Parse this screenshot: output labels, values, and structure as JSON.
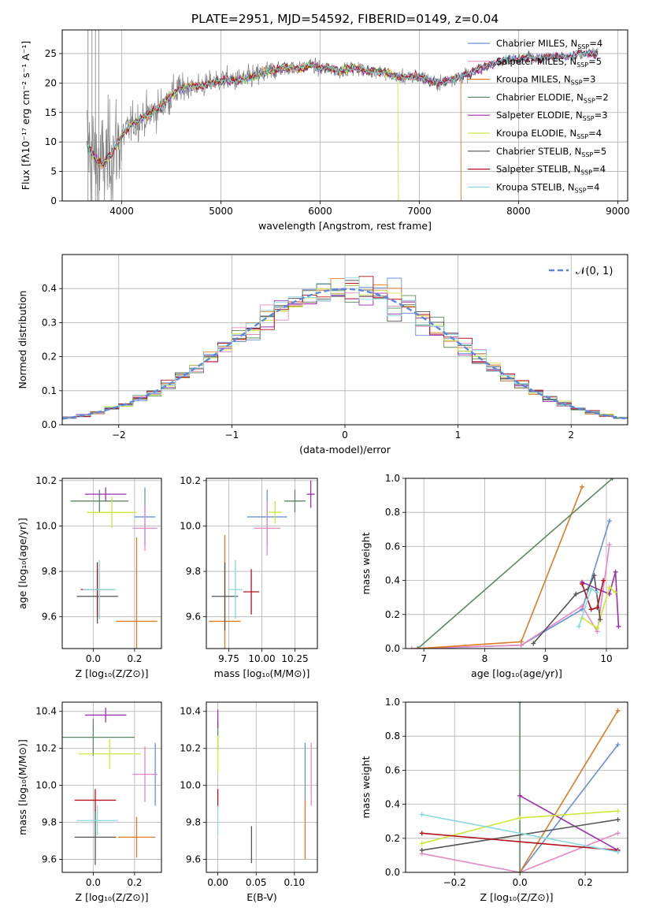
{
  "title": "PLATE=2951, MJD=54592, FIBERID=0149, z=0.04",
  "models": [
    {
      "label": "Chabrier MILES, N",
      "n": "4",
      "color": "#6a8fd8"
    },
    {
      "label": "Salpeter MILES, N",
      "n": "5",
      "color": "#e48ac2"
    },
    {
      "label": "Kroupa MILES, N",
      "n": "3",
      "color": "#e07b22"
    },
    {
      "label": "Chabrier ELODIE, N",
      "n": "2",
      "color": "#5b8a62"
    },
    {
      "label": "Salpeter ELODIE, N",
      "n": "3",
      "color": "#9b2fae"
    },
    {
      "label": "Kroupa ELODIE, N",
      "n": "4",
      "color": "#cde83b"
    },
    {
      "label": "Chabrier STELIB, N",
      "n": "5",
      "color": "#555555"
    },
    {
      "label": "Salpeter STELIB, N",
      "n": "4",
      "color": "#b5121b"
    },
    {
      "label": "Kroupa STELIB, N",
      "n": "4",
      "color": "#85dadd"
    }
  ],
  "legend_sub": "SSP",
  "chart_data": [
    {
      "id": "spectrum",
      "type": "line",
      "xlabel": "wavelength [Angstrom, rest frame]",
      "ylabel": "Flux [fλ10⁻¹⁷ erg cm⁻² s⁻¹ A⁻¹]",
      "xlim": [
        3400,
        9100
      ],
      "ylim": [
        0,
        29
      ],
      "xticks": [
        4000,
        5000,
        6000,
        7000,
        8000,
        9000
      ],
      "yticks": [
        0,
        5,
        10,
        15,
        20,
        25
      ],
      "data_color": "#808080",
      "continuum": [
        [
          3650,
          9.5
        ],
        [
          3700,
          8.0
        ],
        [
          3800,
          6.0
        ],
        [
          3900,
          8.0
        ],
        [
          4000,
          11.0
        ],
        [
          4100,
          13.0
        ],
        [
          4200,
          14.0
        ],
        [
          4300,
          15.0
        ],
        [
          4400,
          16.0
        ],
        [
          4500,
          18.0
        ],
        [
          4600,
          19.0
        ],
        [
          4700,
          19.5
        ],
        [
          4800,
          19.5
        ],
        [
          4900,
          20.0
        ],
        [
          5000,
          20.5
        ],
        [
          5100,
          20.5
        ],
        [
          5200,
          20.5
        ],
        [
          5300,
          21.0
        ],
        [
          5400,
          21.5
        ],
        [
          5500,
          22.0
        ],
        [
          5600,
          22.5
        ],
        [
          5700,
          22.5
        ],
        [
          5800,
          22.5
        ],
        [
          5900,
          23.0
        ],
        [
          6000,
          22.5
        ],
        [
          6100,
          22.5
        ],
        [
          6200,
          22.0
        ],
        [
          6300,
          22.5
        ],
        [
          6400,
          22.5
        ],
        [
          6500,
          22.0
        ],
        [
          6600,
          22.0
        ],
        [
          6700,
          21.5
        ],
        [
          6800,
          21.0
        ],
        [
          6900,
          21.0
        ],
        [
          7000,
          21.0
        ],
        [
          7100,
          20.5
        ],
        [
          7200,
          20.0
        ],
        [
          7300,
          20.5
        ],
        [
          7400,
          21.0
        ],
        [
          7500,
          21.5
        ],
        [
          7600,
          22.5
        ],
        [
          7700,
          23.0
        ],
        [
          7800,
          23.5
        ],
        [
          7900,
          24.0
        ],
        [
          8000,
          24.0
        ],
        [
          8100,
          24.5
        ],
        [
          8200,
          24.0
        ],
        [
          8300,
          24.5
        ],
        [
          8400,
          24.5
        ],
        [
          8500,
          24.5
        ],
        [
          8600,
          25.0
        ],
        [
          8700,
          25.0
        ],
        [
          8800,
          25.0
        ]
      ],
      "dropouts": [
        {
          "model": 5,
          "x": 6790
        },
        {
          "model": 2,
          "x": 7420
        }
      ]
    },
    {
      "id": "residuals",
      "type": "histogram",
      "xlabel": "(data-model)/error",
      "ylabel": "Normed distribution",
      "xlim": [
        -2.5,
        2.5
      ],
      "ylim": [
        0,
        0.5
      ],
      "xticks": [
        -2,
        -1,
        0,
        1,
        2
      ],
      "yticks": [
        0.0,
        0.1,
        0.2,
        0.3,
        0.4
      ],
      "bin_width": 0.125,
      "legend": "𝒩(0, 1)",
      "normal_color": "#5b87dd",
      "grid": true
    },
    {
      "id": "age-vs-Z",
      "type": "scatter",
      "xlabel": "Z [log₁₀(Z/Z⊙)]",
      "ylabel": "age  [log₁₀(age/yr)]",
      "xlim": [
        -0.15,
        0.33
      ],
      "ylim": [
        9.46,
        10.21
      ],
      "xticks": [
        0.0,
        0.2
      ],
      "yticks": [
        9.6,
        9.8,
        10.0,
        10.2
      ],
      "points": [
        {
          "model": 0,
          "x": 0.25,
          "y": 10.04,
          "xerr": 0.05,
          "yerr": 0.13
        },
        {
          "model": 1,
          "x": 0.25,
          "y": 9.99,
          "xerr": 0.06,
          "yerr": 0.1
        },
        {
          "model": 2,
          "x": 0.21,
          "y": 9.58,
          "xerr": 0.1,
          "yerr": 0.37
        },
        {
          "model": 3,
          "x": 0.03,
          "y": 10.11,
          "xerr": 0.14,
          "yerr": 0.05
        },
        {
          "model": 4,
          "x": 0.06,
          "y": 10.14,
          "xerr": 0.1,
          "yerr": 0.03
        },
        {
          "model": 5,
          "x": 0.09,
          "y": 10.06,
          "xerr": 0.12,
          "yerr": 0.07
        },
        {
          "model": 6,
          "x": 0.02,
          "y": 9.69,
          "xerr": 0.1,
          "yerr": 0.12
        },
        {
          "model": 7,
          "x": 0.02,
          "y": 9.72,
          "xerr": 0.08,
          "yerr": 0.12
        },
        {
          "model": 8,
          "x": 0.03,
          "y": 9.72,
          "xerr": 0.08,
          "yerr": 0.13
        }
      ]
    },
    {
      "id": "age-vs-mass",
      "type": "scatter",
      "xlabel": "mass [log₁₀(M/M⊙)]",
      "ylabel": "",
      "xlim": [
        9.58,
        10.42
      ],
      "ylim": [
        9.46,
        10.21
      ],
      "xticks": [
        9.75,
        10.0,
        10.25
      ],
      "yticks": [
        9.6,
        9.8,
        10.0,
        10.2
      ],
      "points": [
        {
          "model": 0,
          "x": 10.04,
          "y": 10.04,
          "xerr": 0.15,
          "yerr": 0.12
        },
        {
          "model": 1,
          "x": 10.04,
          "y": 9.99,
          "xerr": 0.1,
          "yerr": 0.12
        },
        {
          "model": 2,
          "x": 9.72,
          "y": 9.58,
          "xerr": 0.12,
          "yerr": 0.38
        },
        {
          "model": 3,
          "x": 10.25,
          "y": 10.11,
          "xerr": 0.08,
          "yerr": 0.05
        },
        {
          "model": 4,
          "x": 10.37,
          "y": 10.14,
          "xerr": 0.03,
          "yerr": 0.06
        },
        {
          "model": 5,
          "x": 10.1,
          "y": 10.06,
          "xerr": 0.05,
          "yerr": 0.05
        },
        {
          "model": 6,
          "x": 9.72,
          "y": 9.69,
          "xerr": 0.1,
          "yerr": 0.15
        },
        {
          "model": 7,
          "x": 9.92,
          "y": 9.71,
          "xerr": 0.06,
          "yerr": 0.1
        },
        {
          "model": 8,
          "x": 9.8,
          "y": 9.72,
          "xerr": 0.05,
          "yerr": 0.13
        }
      ]
    },
    {
      "id": "weight-vs-age",
      "type": "line",
      "xlabel": "age  [log₁₀(age/yr)]",
      "ylabel": "mass weight",
      "xlim": [
        6.7,
        10.35
      ],
      "ylim": [
        0,
        1.0
      ],
      "xticks": [
        7,
        8,
        9,
        10
      ],
      "yticks": [
        0.0,
        0.2,
        0.4,
        0.6,
        0.8,
        1.0
      ],
      "grid": true,
      "series": [
        {
          "model": 0,
          "points": [
            [
              6.9,
              0.0
            ],
            [
              8.6,
              0.02
            ],
            [
              9.6,
              0.23
            ],
            [
              10.05,
              0.75
            ]
          ]
        },
        {
          "model": 1,
          "points": [
            [
              6.8,
              0.0
            ],
            [
              8.6,
              0.02
            ],
            [
              9.6,
              0.25
            ],
            [
              9.85,
              0.1
            ],
            [
              10.05,
              0.61
            ]
          ]
        },
        {
          "model": 2,
          "points": [
            [
              6.9,
              0.0
            ],
            [
              8.6,
              0.04
            ],
            [
              9.6,
              0.95
            ]
          ]
        },
        {
          "model": 3,
          "points": [
            [
              6.9,
              0.0
            ],
            [
              10.1,
              1.0
            ]
          ]
        },
        {
          "model": 4,
          "points": [
            [
              9.6,
              0.39
            ],
            [
              10.05,
              0.32
            ],
            [
              10.15,
              0.45
            ],
            [
              10.2,
              0.13
            ]
          ]
        },
        {
          "model": 5,
          "points": [
            [
              9.6,
              0.18
            ],
            [
              9.85,
              0.12
            ],
            [
              10.05,
              0.36
            ],
            [
              10.15,
              0.33
            ]
          ]
        },
        {
          "model": 6,
          "points": [
            [
              8.8,
              0.03
            ],
            [
              9.5,
              0.32
            ],
            [
              9.7,
              0.35
            ],
            [
              9.8,
              0.43
            ],
            [
              9.9,
              0.17
            ]
          ]
        },
        {
          "model": 7,
          "points": [
            [
              9.6,
              0.38
            ],
            [
              9.75,
              0.23
            ],
            [
              9.85,
              0.24
            ],
            [
              9.95,
              0.4
            ]
          ]
        },
        {
          "model": 8,
          "points": [
            [
              9.55,
              0.13
            ],
            [
              9.75,
              0.35
            ],
            [
              9.85,
              0.33
            ]
          ]
        }
      ]
    },
    {
      "id": "mass-vs-Z",
      "type": "scatter",
      "xlabel": "Z [log₁₀(Z/Z⊙)]",
      "ylabel": "mass [log₁₀(M/M⊙)]",
      "xlim": [
        -0.15,
        0.33
      ],
      "ylim": [
        9.53,
        10.45
      ],
      "xticks": [
        0.0,
        0.2
      ],
      "yticks": [
        9.6,
        9.8,
        10.0,
        10.2,
        10.4
      ],
      "points": [
        {
          "model": 0,
          "x": 0.3,
          "y": 10.06,
          "xerr": 0.01,
          "yerr": 0.17
        },
        {
          "model": 1,
          "x": 0.25,
          "y": 10.06,
          "xerr": 0.06,
          "yerr": 0.15
        },
        {
          "model": 2,
          "x": 0.21,
          "y": 9.72,
          "xerr": 0.09,
          "yerr": 0.11
        },
        {
          "model": 3,
          "x": 0.0,
          "y": 10.26,
          "xerr": 0.2,
          "yerr": 0.1
        },
        {
          "model": 4,
          "x": 0.06,
          "y": 10.38,
          "xerr": 0.1,
          "yerr": 0.04
        },
        {
          "model": 5,
          "x": 0.08,
          "y": 10.17,
          "xerr": 0.15,
          "yerr": 0.08
        },
        {
          "model": 6,
          "x": 0.01,
          "y": 9.72,
          "xerr": 0.1,
          "yerr": 0.15
        },
        {
          "model": 7,
          "x": 0.01,
          "y": 9.92,
          "xerr": 0.1,
          "yerr": 0.06
        },
        {
          "model": 8,
          "x": 0.02,
          "y": 9.81,
          "xerr": 0.1,
          "yerr": 0.08
        }
      ]
    },
    {
      "id": "mass-vs-ebv",
      "type": "scatter",
      "xlabel": "E(B-V)",
      "ylabel": "",
      "xlim": [
        -0.015,
        0.13
      ],
      "ylim": [
        9.53,
        10.45
      ],
      "xticks": [
        0.0,
        0.05,
        0.1
      ],
      "yticks": [
        9.6,
        9.8,
        10.0,
        10.2,
        10.4
      ],
      "points": [
        {
          "model": 0,
          "x": 0.114,
          "y": 10.06,
          "xerr": 0.0,
          "yerr": 0.17
        },
        {
          "model": 1,
          "x": 0.122,
          "y": 10.06,
          "xerr": 0.0,
          "yerr": 0.17
        },
        {
          "model": 2,
          "x": 0.114,
          "y": 9.76,
          "xerr": 0.0,
          "yerr": 0.16
        },
        {
          "model": 3,
          "x": 0.0,
          "y": 10.27,
          "xerr": 0.0,
          "yerr": 0.08
        },
        {
          "model": 4,
          "x": 0.0,
          "y": 10.36,
          "xerr": 0.0,
          "yerr": 0.05
        },
        {
          "model": 5,
          "x": 0.0,
          "y": 10.17,
          "xerr": 0.0,
          "yerr": 0.1
        },
        {
          "model": 6,
          "x": 0.044,
          "y": 9.68,
          "xerr": 0.0,
          "yerr": 0.1
        },
        {
          "model": 7,
          "x": 0.0,
          "y": 9.93,
          "xerr": 0.0,
          "yerr": 0.05
        },
        {
          "model": 8,
          "x": 0.0,
          "y": 9.81,
          "xerr": 0.0,
          "yerr": 0.08
        }
      ]
    },
    {
      "id": "weight-vs-Z",
      "type": "line",
      "xlabel": "Z [log₁₀(Z/Z⊙)]",
      "ylabel": "mass weight",
      "xlim": [
        -0.35,
        0.33
      ],
      "ylim": [
        0,
        1.0
      ],
      "xticks": [
        -0.2,
        0.0,
        0.2
      ],
      "yticks": [
        0.0,
        0.2,
        0.4,
        0.6,
        0.8,
        1.0
      ],
      "grid": true,
      "series": [
        {
          "model": 0,
          "points": [
            [
              0.0,
              0.0
            ],
            [
              0.3,
              0.75
            ]
          ]
        },
        {
          "model": 1,
          "points": [
            [
              -0.3,
              0.11
            ],
            [
              0.0,
              0.0
            ],
            [
              0.3,
              0.23
            ]
          ]
        },
        {
          "model": 2,
          "points": [
            [
              0.0,
              0.0
            ],
            [
              0.3,
              0.95
            ]
          ]
        },
        {
          "model": 3,
          "points": [
            [
              0.0,
              0.0
            ],
            [
              0.0,
              1.0
            ]
          ]
        },
        {
          "model": 4,
          "points": [
            [
              0.0,
              0.45
            ],
            [
              0.3,
              0.13
            ]
          ]
        },
        {
          "model": 5,
          "points": [
            [
              -0.3,
              0.17
            ],
            [
              0.0,
              0.32
            ],
            [
              0.3,
              0.36
            ]
          ]
        },
        {
          "model": 6,
          "points": [
            [
              -0.3,
              0.13
            ],
            [
              0.3,
              0.31
            ]
          ]
        },
        {
          "model": 7,
          "points": [
            [
              -0.3,
              0.23
            ],
            [
              0.3,
              0.13
            ]
          ]
        },
        {
          "model": 8,
          "points": [
            [
              -0.3,
              0.34
            ],
            [
              0.3,
              0.12
            ]
          ]
        }
      ]
    }
  ]
}
